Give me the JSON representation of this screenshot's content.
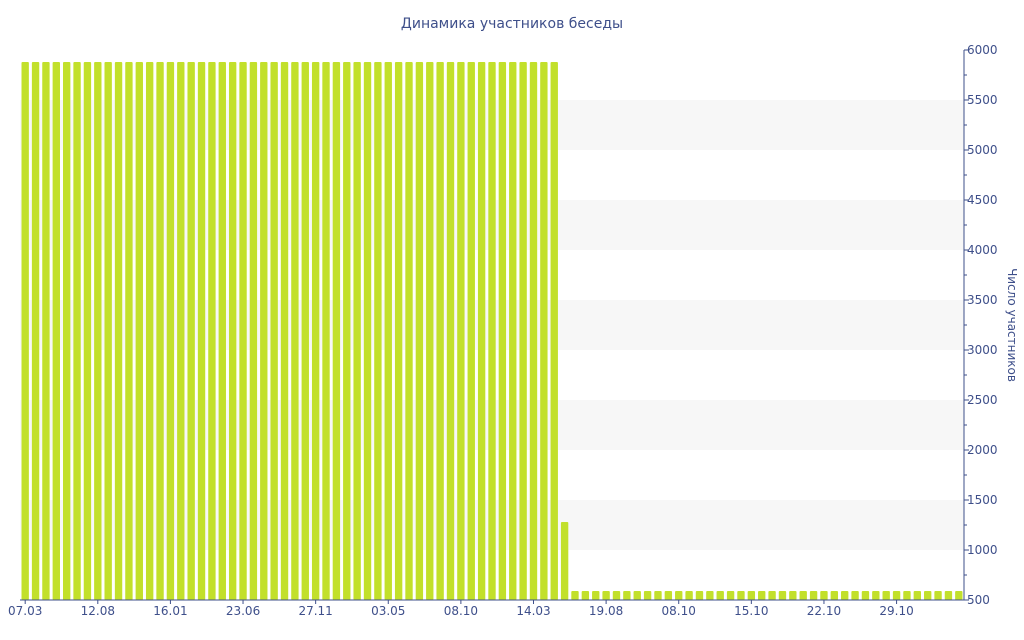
{
  "chart_data": {
    "type": "bar",
    "title": "Динамика участников беседы",
    "ylabel": "Число участников",
    "xlabel": "",
    "ylim": [
      500,
      6000
    ],
    "y_ticks": [
      "500",
      "1000",
      "1500",
      "2000",
      "2500",
      "3000",
      "3500",
      "4000",
      "4500",
      "5000",
      "5500",
      "6000"
    ],
    "y_axis_side": "right",
    "grid": "alternating bands",
    "x_tick_labels": [
      "07.03",
      "12.08",
      "16.01",
      "23.06",
      "27.11",
      "03.05",
      "08.10",
      "14.03",
      "19.08",
      "08.10",
      "15.10",
      "22.10",
      "29.10"
    ],
    "x_tick_index": [
      0,
      7,
      14,
      21,
      28,
      35,
      42,
      49,
      56,
      63,
      70,
      77,
      84
    ],
    "values": [
      5880,
      5880,
      5880,
      5880,
      5880,
      5880,
      5880,
      5880,
      5880,
      5880,
      5880,
      5880,
      5880,
      5880,
      5880,
      5880,
      5880,
      5880,
      5880,
      5880,
      5880,
      5880,
      5880,
      5880,
      5880,
      5880,
      5880,
      5880,
      5880,
      5880,
      5880,
      5880,
      5880,
      5880,
      5880,
      5880,
      5880,
      5880,
      5880,
      5880,
      5880,
      5880,
      5880,
      5880,
      5880,
      5880,
      5880,
      5880,
      5880,
      5880,
      5880,
      5880,
      1280,
      590,
      590,
      590,
      590,
      590,
      590,
      590,
      590,
      590,
      590,
      590,
      590,
      590,
      590,
      590,
      590,
      590,
      590,
      590,
      590,
      590,
      590,
      590,
      590,
      590,
      590,
      590,
      590,
      590,
      590,
      590,
      590,
      590,
      590,
      590,
      590,
      590,
      590
    ],
    "colors": {
      "bar": "#c2e02b",
      "text": "#3e4f8a",
      "band": "#f7f7f7"
    }
  }
}
